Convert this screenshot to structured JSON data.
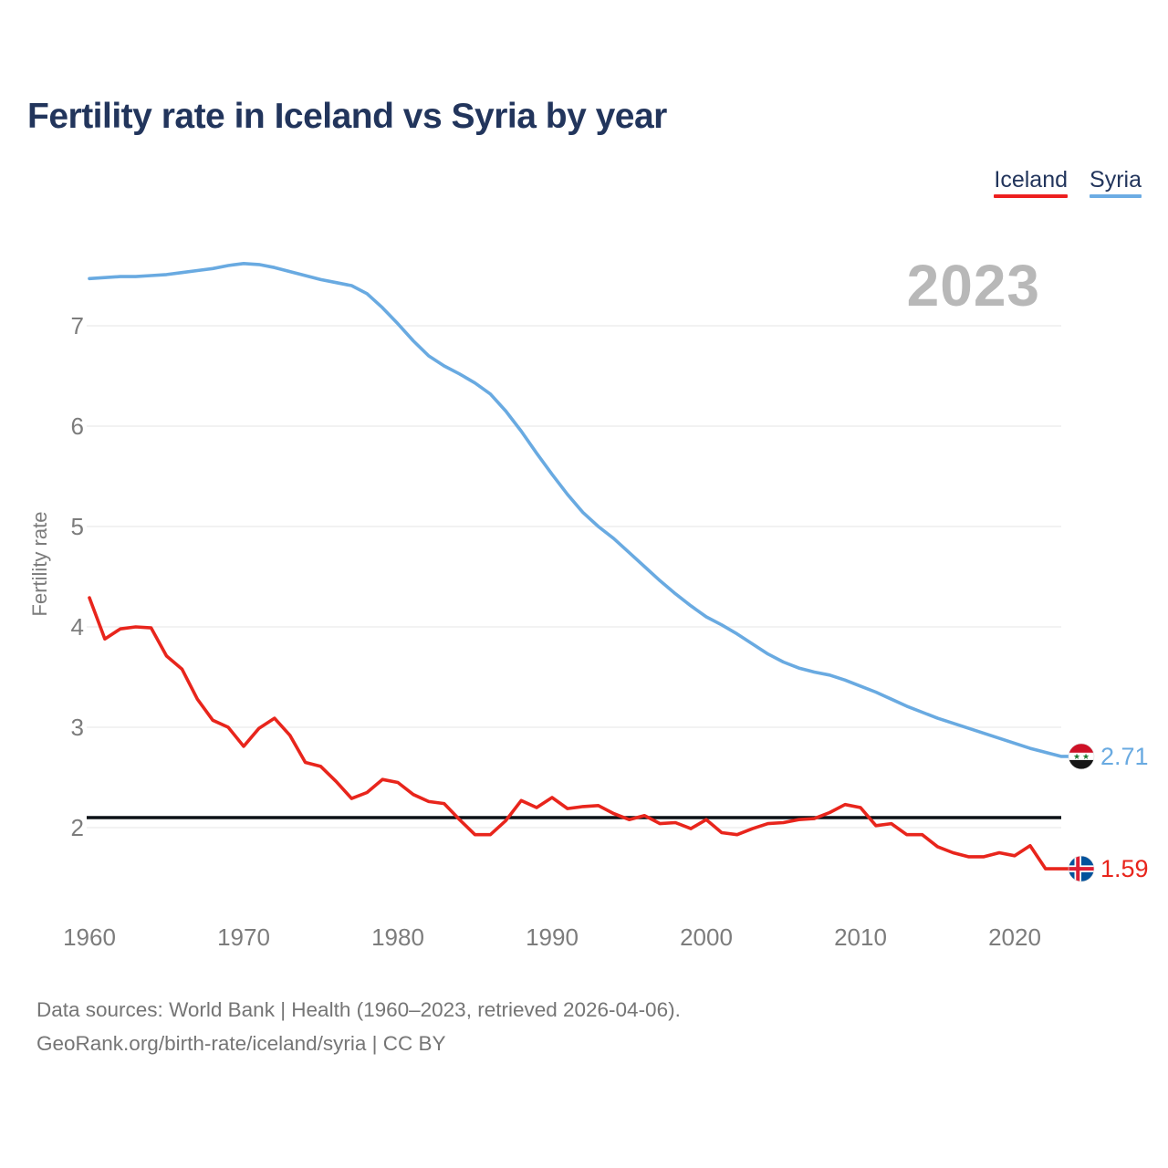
{
  "header": {
    "title": "Fertility rate in Iceland vs Syria by year"
  },
  "legend": {
    "items": [
      {
        "label": "Iceland",
        "color": "#ed1f1f"
      },
      {
        "label": "Syria",
        "color": "#6cace4"
      }
    ]
  },
  "watermark": "2023",
  "chart_data": {
    "type": "line",
    "title": "Fertility rate in Iceland vs Syria by year",
    "xlabel": "",
    "ylabel": "Fertility rate",
    "x": [
      1960,
      1961,
      1962,
      1963,
      1964,
      1965,
      1966,
      1967,
      1968,
      1969,
      1970,
      1971,
      1972,
      1973,
      1974,
      1975,
      1976,
      1977,
      1978,
      1979,
      1980,
      1981,
      1982,
      1983,
      1984,
      1985,
      1986,
      1987,
      1988,
      1989,
      1990,
      1991,
      1992,
      1993,
      1994,
      1995,
      1996,
      1997,
      1998,
      1999,
      2000,
      2001,
      2002,
      2003,
      2004,
      2005,
      2006,
      2007,
      2008,
      2009,
      2010,
      2011,
      2012,
      2013,
      2014,
      2015,
      2016,
      2017,
      2018,
      2019,
      2020,
      2021,
      2022,
      2023
    ],
    "series": [
      {
        "name": "Syria",
        "color": "#69aae1",
        "end_label": "2.71",
        "end_value": 2.71,
        "flag": "syria",
        "values": [
          7.47,
          7.48,
          7.49,
          7.49,
          7.5,
          7.51,
          7.53,
          7.55,
          7.57,
          7.6,
          7.62,
          7.61,
          7.58,
          7.54,
          7.5,
          7.46,
          7.43,
          7.4,
          7.32,
          7.18,
          7.02,
          6.85,
          6.7,
          6.6,
          6.52,
          6.43,
          6.32,
          6.15,
          5.95,
          5.73,
          5.52,
          5.32,
          5.14,
          5.0,
          4.88,
          4.74,
          4.6,
          4.46,
          4.33,
          4.21,
          4.1,
          4.02,
          3.93,
          3.83,
          3.73,
          3.65,
          3.59,
          3.55,
          3.52,
          3.47,
          3.41,
          3.35,
          3.28,
          3.21,
          3.15,
          3.09,
          3.04,
          2.99,
          2.94,
          2.89,
          2.84,
          2.79,
          2.75,
          2.71
        ]
      },
      {
        "name": "Iceland",
        "color": "#e8251c",
        "end_label": "1.59",
        "end_value": 1.59,
        "flag": "iceland",
        "values": [
          4.29,
          3.88,
          3.98,
          4.0,
          3.99,
          3.71,
          3.58,
          3.28,
          3.07,
          3.0,
          2.81,
          2.99,
          3.09,
          2.92,
          2.65,
          2.61,
          2.46,
          2.29,
          2.35,
          2.48,
          2.45,
          2.33,
          2.26,
          2.24,
          2.08,
          1.93,
          1.93,
          2.07,
          2.27,
          2.2,
          2.3,
          2.19,
          2.21,
          2.22,
          2.14,
          2.08,
          2.12,
          2.04,
          2.05,
          1.99,
          2.08,
          1.95,
          1.93,
          1.99,
          2.04,
          2.05,
          2.08,
          2.09,
          2.15,
          2.23,
          2.2,
          2.02,
          2.04,
          1.93,
          1.93,
          1.81,
          1.75,
          1.71,
          1.71,
          1.75,
          1.72,
          1.82,
          1.59,
          1.59
        ]
      }
    ],
    "yticks": [
      2,
      3,
      4,
      5,
      6,
      7
    ],
    "xticks": [
      1960,
      1970,
      1980,
      1990,
      2000,
      2010,
      2020
    ],
    "ylim": [
      1.45,
      7.95
    ],
    "grid": "horizontal",
    "reference_line": {
      "value": 2.1,
      "color": "#0c1117"
    },
    "legend_position": "top-right"
  },
  "footer": {
    "line1": "Data sources: World Bank | Health (1960–2023, retrieved 2026-04-06).",
    "line2": "GeoRank.org/birth-rate/iceland/syria | CC BY"
  }
}
